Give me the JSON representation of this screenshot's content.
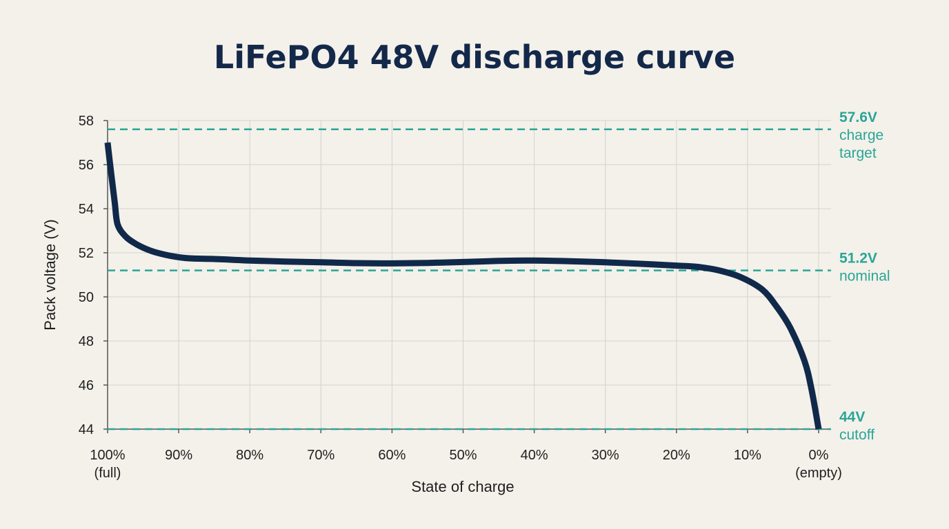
{
  "chart_data": {
    "type": "line",
    "title": "LiFePO4 48V discharge curve",
    "xlabel": "State of charge",
    "ylabel": "Pack voltage (V)",
    "xlim": [
      100,
      0
    ],
    "ylim": [
      44,
      58
    ],
    "grid": true,
    "x_ticks": [
      {
        "value": 100,
        "label": "100%",
        "sublabel": "(full)"
      },
      {
        "value": 90,
        "label": "90%"
      },
      {
        "value": 80,
        "label": "80%"
      },
      {
        "value": 70,
        "label": "70%"
      },
      {
        "value": 60,
        "label": "60%"
      },
      {
        "value": 50,
        "label": "50%"
      },
      {
        "value": 40,
        "label": "40%"
      },
      {
        "value": 30,
        "label": "30%"
      },
      {
        "value": 20,
        "label": "20%"
      },
      {
        "value": 10,
        "label": "10%"
      },
      {
        "value": 0,
        "label": "0%",
        "sublabel": "(empty)"
      }
    ],
    "y_ticks": [
      {
        "value": 44,
        "label": "44"
      },
      {
        "value": 46,
        "label": "46"
      },
      {
        "value": 48,
        "label": "48"
      },
      {
        "value": 50,
        "label": "50"
      },
      {
        "value": 52,
        "label": "52"
      },
      {
        "value": 54,
        "label": "54"
      },
      {
        "value": 56,
        "label": "56"
      },
      {
        "value": 58,
        "label": "58"
      }
    ],
    "series": [
      {
        "color": "#10294a",
        "points": [
          [
            100,
            57.0
          ],
          [
            99.5,
            55.6
          ],
          [
            99,
            54.3
          ],
          [
            98.6,
            53.3
          ],
          [
            97.5,
            52.75
          ],
          [
            96,
            52.4
          ],
          [
            94,
            52.1
          ],
          [
            92,
            51.92
          ],
          [
            90,
            51.8
          ],
          [
            88,
            51.74
          ],
          [
            85,
            51.72
          ],
          [
            80,
            51.65
          ],
          [
            75,
            51.6
          ],
          [
            70,
            51.57
          ],
          [
            65,
            51.53
          ],
          [
            60,
            51.52
          ],
          [
            55,
            51.54
          ],
          [
            50,
            51.58
          ],
          [
            45,
            51.63
          ],
          [
            40,
            51.65
          ],
          [
            35,
            51.62
          ],
          [
            30,
            51.57
          ],
          [
            25,
            51.5
          ],
          [
            20,
            51.42
          ],
          [
            17,
            51.36
          ],
          [
            14,
            51.2
          ],
          [
            11,
            50.9
          ],
          [
            8,
            50.35
          ],
          [
            6,
            49.6
          ],
          [
            4,
            48.6
          ],
          [
            2,
            47.1
          ],
          [
            1,
            45.8
          ],
          [
            0,
            44.0
          ]
        ]
      }
    ],
    "reference_lines": [
      {
        "y": 57.6,
        "value_label": "57.6V",
        "text_lines": [
          "charge",
          "target"
        ],
        "color": "#2aa596"
      },
      {
        "y": 51.2,
        "value_label": "51.2V",
        "text_lines": [
          "nominal"
        ],
        "color": "#2aa596"
      },
      {
        "y": 44,
        "value_label": "44V",
        "text_lines": [
          "cutoff"
        ],
        "color": "#2aa596"
      }
    ],
    "colors": {
      "background": "#f3f1ea",
      "grid": "#d3d2cc",
      "title": "#14284a"
    }
  }
}
